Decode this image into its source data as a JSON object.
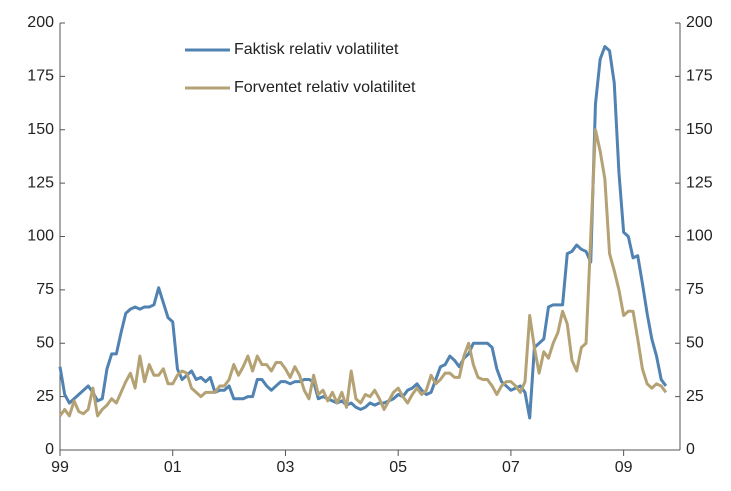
{
  "chart_data": {
    "type": "line",
    "categories": [
      "99",
      null,
      null,
      null,
      null,
      null,
      null,
      null,
      null,
      null,
      null,
      null,
      null,
      null,
      null,
      null,
      null,
      null,
      null,
      null,
      null,
      null,
      null,
      null,
      "01",
      null,
      null,
      null,
      null,
      null,
      null,
      null,
      null,
      null,
      null,
      null,
      null,
      null,
      null,
      null,
      null,
      null,
      null,
      null,
      null,
      null,
      null,
      null,
      "03",
      null,
      null,
      null,
      null,
      null,
      null,
      null,
      null,
      null,
      null,
      null,
      null,
      null,
      null,
      null,
      null,
      null,
      null,
      null,
      null,
      null,
      null,
      null,
      "05",
      null,
      null,
      null,
      null,
      null,
      null,
      null,
      null,
      null,
      null,
      null,
      null,
      null,
      null,
      null,
      null,
      null,
      null,
      null,
      null,
      null,
      null,
      null,
      "07",
      null,
      null,
      null,
      null,
      null,
      null,
      null,
      null,
      null,
      null,
      null,
      null,
      null,
      null,
      null,
      null,
      null,
      null,
      null,
      null,
      null,
      null,
      null,
      "09",
      null,
      null,
      null,
      null,
      null,
      null,
      null,
      null,
      null,
      null,
      null
    ],
    "series": [
      {
        "name": "Faktisk relativ volatilitet",
        "color": "#5082b2",
        "values": [
          39,
          26,
          22,
          24,
          26,
          28,
          30,
          27,
          23,
          24,
          38,
          45,
          45,
          55,
          64,
          66,
          67,
          66,
          67,
          67,
          68,
          76,
          69,
          62,
          60,
          38,
          33,
          35,
          37,
          33,
          34,
          32,
          34,
          27,
          28,
          28,
          30,
          24,
          24,
          24,
          25,
          25,
          33,
          33,
          30,
          28,
          30,
          32,
          32,
          31,
          32,
          32,
          33,
          33,
          32,
          24,
          25,
          24,
          23,
          22,
          23,
          21,
          22,
          20,
          19,
          20,
          22,
          21,
          22,
          22,
          23,
          24,
          26,
          25,
          28,
          29,
          31,
          28,
          26,
          27,
          33,
          39,
          40,
          44,
          42,
          39,
          43,
          45,
          50,
          50,
          50,
          50,
          48,
          38,
          32,
          30,
          28,
          29,
          30,
          27,
          15,
          48,
          50,
          52,
          67,
          68,
          68,
          68,
          92,
          93,
          96,
          94,
          93,
          88,
          162,
          183,
          189,
          187,
          172,
          130,
          102,
          100,
          90,
          91,
          78,
          64,
          52,
          44,
          33,
          30,
          null,
          null
        ]
      },
      {
        "name": "Forventet relativ volatilitet",
        "color": "#b5a274",
        "values": [
          16,
          19,
          16,
          23,
          18,
          17,
          19,
          29,
          16,
          19,
          21,
          24,
          22,
          27,
          32,
          36,
          29,
          44,
          32,
          40,
          35,
          35,
          38,
          31,
          31,
          35,
          37,
          36,
          29,
          27,
          25,
          27,
          27,
          27,
          30,
          30,
          33,
          40,
          35,
          39,
          44,
          37,
          44,
          40,
          40,
          37,
          41,
          41,
          38,
          34,
          39,
          35,
          28,
          24,
          35,
          26,
          28,
          23,
          27,
          22,
          27,
          20,
          37,
          24,
          22,
          26,
          25,
          28,
          24,
          19,
          23,
          27,
          29,
          25,
          22,
          26,
          29,
          26,
          28,
          35,
          31,
          33,
          36,
          36,
          34,
          34,
          44,
          50,
          40,
          34,
          33,
          33,
          30,
          26,
          30,
          32,
          32,
          30,
          27,
          32,
          63,
          48,
          36,
          46,
          43,
          50,
          55,
          65,
          59,
          42,
          37,
          48,
          50,
          100,
          150,
          140,
          127,
          92,
          84,
          75,
          63,
          65,
          65,
          52,
          38,
          31,
          29,
          31,
          30,
          27,
          null,
          null
        ]
      }
    ],
    "ylim": [
      0,
      200
    ],
    "yticks": [
      0,
      25,
      50,
      75,
      100,
      125,
      150,
      175,
      200
    ],
    "y2lim": [
      0,
      200
    ],
    "y2ticks": [
      0,
      25,
      50,
      75,
      100,
      125,
      150,
      175,
      200
    ],
    "legend": "top-left"
  }
}
